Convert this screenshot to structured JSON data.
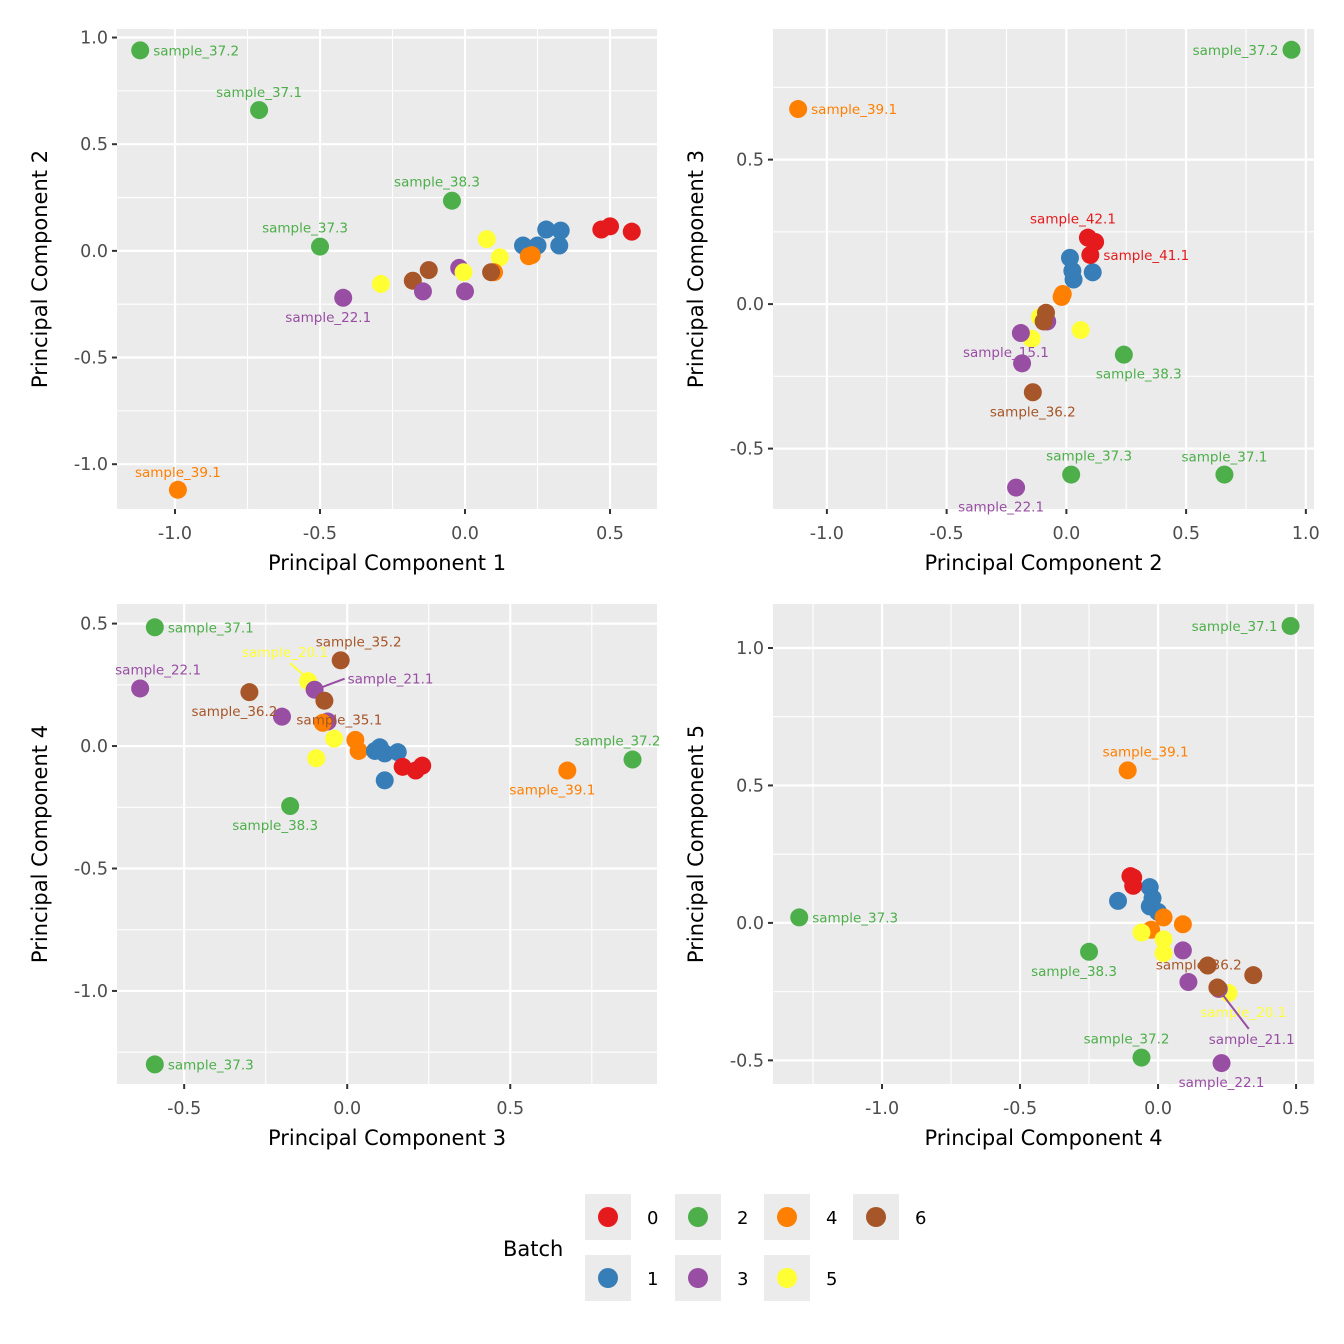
{
  "chart_data": {
    "type": "scatter",
    "palette": {
      "0": "#e41a1c",
      "1": "#377eb8",
      "2": "#4daf4a",
      "3": "#984ea3",
      "4": "#ff7f00",
      "5": "#ffff33",
      "6": "#a65628"
    },
    "legend": {
      "title": "Batch",
      "placement": "bottom",
      "entries": [
        {
          "batch": "0",
          "label": "0"
        },
        {
          "batch": "1",
          "label": "1"
        },
        {
          "batch": "2",
          "label": "2"
        },
        {
          "batch": "3",
          "label": "3"
        },
        {
          "batch": "4",
          "label": "4"
        },
        {
          "batch": "5",
          "label": "5"
        },
        {
          "batch": "6",
          "label": "6"
        }
      ]
    },
    "panels": [
      {
        "id": "pc1-pc2",
        "xlabel": "Principal Component 1",
        "ylabel": "Principal Component 2",
        "xlim": [
          -1.2,
          0.662
        ],
        "ylim": [
          -1.21,
          1.04
        ],
        "xticks": [
          -1.0,
          -0.5,
          0.0,
          0.5
        ],
        "xtick_labels": [
          "-1.0",
          "-0.5",
          "0.0",
          "0.5"
        ],
        "yticks": [
          -1.0,
          -0.5,
          0.0,
          0.5,
          1.0
        ],
        "ytick_labels": [
          "-1.0",
          "-0.5",
          "0.0",
          "0.5",
          "1.0"
        ],
        "grid": true,
        "points": [
          {
            "x": -1.12,
            "y": 0.94,
            "batch": "2",
            "label": "sample_37.2",
            "lpos": "right"
          },
          {
            "x": -0.71,
            "y": 0.66,
            "batch": "2",
            "label": "sample_37.1",
            "lpos": "above"
          },
          {
            "x": -0.045,
            "y": 0.235,
            "batch": "2",
            "label": "sample_38.3",
            "lpos": "above-left"
          },
          {
            "x": -0.5,
            "y": 0.02,
            "batch": "2",
            "label": "sample_37.3",
            "lpos": "above-left"
          },
          {
            "x": -0.99,
            "y": -1.12,
            "batch": "4",
            "label": "sample_39.1",
            "lpos": "above"
          },
          {
            "x": -0.42,
            "y": -0.22,
            "batch": "3",
            "label": "sample_22.1",
            "lpos": "below-left"
          },
          {
            "x": -0.29,
            "y": -0.155,
            "batch": "5"
          },
          {
            "x": -0.18,
            "y": -0.14,
            "batch": "6"
          },
          {
            "x": -0.125,
            "y": -0.09,
            "batch": "6"
          },
          {
            "x": -0.145,
            "y": -0.19,
            "batch": "3"
          },
          {
            "x": -0.02,
            "y": -0.08,
            "batch": "3"
          },
          {
            "x": 0.0,
            "y": -0.19,
            "batch": "3"
          },
          {
            "x": -0.005,
            "y": -0.1,
            "batch": "5"
          },
          {
            "x": 0.075,
            "y": 0.055,
            "batch": "5"
          },
          {
            "x": 0.12,
            "y": -0.03,
            "batch": "5"
          },
          {
            "x": 0.1,
            "y": -0.1,
            "batch": "4"
          },
          {
            "x": 0.09,
            "y": -0.1,
            "batch": "6"
          },
          {
            "x": 0.2,
            "y": 0.025,
            "batch": "1"
          },
          {
            "x": 0.25,
            "y": 0.025,
            "batch": "1"
          },
          {
            "x": 0.28,
            "y": 0.1,
            "batch": "1"
          },
          {
            "x": 0.33,
            "y": 0.095,
            "batch": "1"
          },
          {
            "x": 0.325,
            "y": 0.025,
            "batch": "1"
          },
          {
            "x": 0.22,
            "y": -0.025,
            "batch": "4"
          },
          {
            "x": 0.23,
            "y": -0.02,
            "batch": "4"
          },
          {
            "x": 0.47,
            "y": 0.1,
            "batch": "0"
          },
          {
            "x": 0.5,
            "y": 0.115,
            "batch": "0"
          },
          {
            "x": 0.575,
            "y": 0.09,
            "batch": "0"
          }
        ]
      },
      {
        "id": "pc2-pc3",
        "xlabel": "Principal Component 2",
        "ylabel": "Principal Component 3",
        "xlim": [
          -1.225,
          1.034
        ],
        "ylim": [
          -0.709,
          0.952
        ],
        "xticks": [
          -1.0,
          -0.5,
          0.0,
          0.5,
          1.0
        ],
        "xtick_labels": [
          "-1.0",
          "-0.5",
          "0.0",
          "0.5",
          "1.0"
        ],
        "yticks": [
          -0.5,
          0.0,
          0.5
        ],
        "ytick_labels": [
          "-0.5",
          "0.0",
          "0.5"
        ],
        "grid": true,
        "points": [
          {
            "x": 0.94,
            "y": 0.88,
            "batch": "2",
            "label": "sample_37.2",
            "lpos": "left"
          },
          {
            "x": -1.12,
            "y": 0.675,
            "batch": "4",
            "label": "sample_39.1",
            "lpos": "right"
          },
          {
            "x": -0.015,
            "y": 0.035,
            "batch": "4"
          },
          {
            "x": -0.02,
            "y": 0.025,
            "batch": "4"
          },
          {
            "x": 0.015,
            "y": 0.16,
            "batch": "1"
          },
          {
            "x": 0.025,
            "y": 0.115,
            "batch": "1"
          },
          {
            "x": 0.03,
            "y": 0.085,
            "batch": "1"
          },
          {
            "x": 0.11,
            "y": 0.11,
            "batch": "1"
          },
          {
            "x": 0.09,
            "y": 0.23,
            "batch": "0",
            "label": "sample_42.1",
            "lpos": "above-left"
          },
          {
            "x": 0.12,
            "y": 0.215,
            "batch": "0"
          },
          {
            "x": 0.1,
            "y": 0.17,
            "batch": "0",
            "label": "sample_41.1",
            "lpos": "right"
          },
          {
            "x": -0.11,
            "y": -0.045,
            "batch": "5"
          },
          {
            "x": -0.08,
            "y": -0.06,
            "batch": "3"
          },
          {
            "x": -0.085,
            "y": -0.03,
            "batch": "6"
          },
          {
            "x": -0.095,
            "y": -0.06,
            "batch": "6"
          },
          {
            "x": -0.145,
            "y": -0.12,
            "batch": "5"
          },
          {
            "x": -0.19,
            "y": -0.1,
            "batch": "3",
            "label": "sample_15.1",
            "lpos": "below-left"
          },
          {
            "x": -0.185,
            "y": -0.205,
            "batch": "3"
          },
          {
            "x": 0.06,
            "y": -0.09,
            "batch": "5"
          },
          {
            "x": 0.24,
            "y": -0.175,
            "batch": "2",
            "label": "sample_38.3",
            "lpos": "below-right"
          },
          {
            "x": -0.14,
            "y": -0.305,
            "batch": "6",
            "label": "sample_36.2",
            "lpos": "below"
          },
          {
            "x": 0.02,
            "y": -0.59,
            "batch": "2",
            "label": "sample_37.3",
            "lpos": "above-right"
          },
          {
            "x": 0.66,
            "y": -0.59,
            "batch": "2",
            "label": "sample_37.1",
            "lpos": "above"
          },
          {
            "x": -0.21,
            "y": -0.635,
            "batch": "3",
            "label": "sample_22.1",
            "lpos": "below-left"
          }
        ]
      },
      {
        "id": "pc3-pc4",
        "xlabel": "Principal Component 3",
        "ylabel": "Principal Component 4",
        "xlim": [
          -0.706,
          0.95
        ],
        "ylim": [
          -1.38,
          0.58
        ],
        "xticks": [
          -0.5,
          0.0,
          0.5
        ],
        "xtick_labels": [
          "-0.5",
          "0.0",
          "0.5"
        ],
        "yticks": [
          -1.0,
          -0.5,
          0.0,
          0.5
        ],
        "ytick_labels": [
          "-1.0",
          "-0.5",
          "0.0",
          "0.5"
        ],
        "grid": true,
        "points": [
          {
            "x": -0.59,
            "y": 0.485,
            "batch": "2",
            "label": "sample_37.1",
            "lpos": "right"
          },
          {
            "x": -0.635,
            "y": 0.235,
            "batch": "3",
            "label": "sample_22.1",
            "lpos": "above-right"
          },
          {
            "x": -0.3,
            "y": 0.22,
            "batch": "6",
            "label": "sample_36.2",
            "lpos": "below-left"
          },
          {
            "x": -0.2,
            "y": 0.12,
            "batch": "3"
          },
          {
            "x": -0.12,
            "y": 0.265,
            "batch": "5",
            "label": "sample_20.1",
            "lpos": "leader-upleft"
          },
          {
            "x": -0.1,
            "y": 0.23,
            "batch": "3",
            "label": "sample_21.1",
            "lpos": "leader-right"
          },
          {
            "x": -0.02,
            "y": 0.35,
            "batch": "6",
            "label": "sample_35.2",
            "lpos": "above-right"
          },
          {
            "x": -0.07,
            "y": 0.185,
            "batch": "6",
            "label": "sample_35.1",
            "lpos": "below-right"
          },
          {
            "x": -0.06,
            "y": 0.1,
            "batch": "3"
          },
          {
            "x": -0.075,
            "y": 0.095,
            "batch": "4"
          },
          {
            "x": -0.04,
            "y": 0.03,
            "batch": "5"
          },
          {
            "x": -0.095,
            "y": -0.05,
            "batch": "5"
          },
          {
            "x": 0.035,
            "y": -0.02,
            "batch": "4"
          },
          {
            "x": 0.025,
            "y": 0.025,
            "batch": "4"
          },
          {
            "x": 0.085,
            "y": -0.02,
            "batch": "1"
          },
          {
            "x": 0.1,
            "y": -0.005,
            "batch": "1"
          },
          {
            "x": 0.115,
            "y": -0.03,
            "batch": "1"
          },
          {
            "x": 0.155,
            "y": -0.025,
            "batch": "1"
          },
          {
            "x": 0.115,
            "y": -0.14,
            "batch": "1"
          },
          {
            "x": 0.17,
            "y": -0.085,
            "batch": "0"
          },
          {
            "x": 0.21,
            "y": -0.1,
            "batch": "0"
          },
          {
            "x": 0.23,
            "y": -0.08,
            "batch": "0"
          },
          {
            "x": -0.175,
            "y": -0.245,
            "batch": "2",
            "label": "sample_38.3",
            "lpos": "below-left"
          },
          {
            "x": 0.675,
            "y": -0.1,
            "batch": "4",
            "label": "sample_39.1",
            "lpos": "below-left"
          },
          {
            "x": 0.875,
            "y": -0.055,
            "batch": "2",
            "label": "sample_37.2",
            "lpos": "above-left"
          },
          {
            "x": -0.59,
            "y": -1.3,
            "batch": "2",
            "label": "sample_37.3",
            "lpos": "right"
          }
        ]
      },
      {
        "id": "pc4-pc5",
        "xlabel": "Principal Component 4",
        "ylabel": "Principal Component 5",
        "xlim": [
          -1.395,
          0.565
        ],
        "ylim": [
          -0.586,
          1.16
        ],
        "xticks": [
          -1.0,
          -0.5,
          0.0,
          0.5
        ],
        "xtick_labels": [
          "-1.0",
          "-0.5",
          "0.0",
          "0.5"
        ],
        "yticks": [
          -0.5,
          0.0,
          0.5,
          1.0
        ],
        "ytick_labels": [
          "-0.5",
          "0.0",
          "0.5",
          "1.0"
        ],
        "grid": true,
        "points": [
          {
            "x": 0.48,
            "y": 1.08,
            "batch": "2",
            "label": "sample_37.1",
            "lpos": "left"
          },
          {
            "x": -0.11,
            "y": 0.555,
            "batch": "4",
            "label": "sample_39.1",
            "lpos": "above-right"
          },
          {
            "x": -1.3,
            "y": 0.02,
            "batch": "2",
            "label": "sample_37.3",
            "lpos": "right"
          },
          {
            "x": -0.145,
            "y": 0.08,
            "batch": "1"
          },
          {
            "x": -0.03,
            "y": 0.13,
            "batch": "1"
          },
          {
            "x": -0.02,
            "y": 0.09,
            "batch": "1"
          },
          {
            "x": -0.03,
            "y": 0.06,
            "batch": "1"
          },
          {
            "x": 0.0,
            "y": 0.04,
            "batch": "1"
          },
          {
            "x": -0.1,
            "y": 0.17,
            "batch": "0"
          },
          {
            "x": -0.09,
            "y": 0.165,
            "batch": "0"
          },
          {
            "x": -0.09,
            "y": 0.135,
            "batch": "0"
          },
          {
            "x": -0.025,
            "y": -0.025,
            "batch": "4"
          },
          {
            "x": 0.02,
            "y": 0.02,
            "batch": "4"
          },
          {
            "x": 0.09,
            "y": -0.005,
            "batch": "4"
          },
          {
            "x": -0.06,
            "y": -0.035,
            "batch": "5"
          },
          {
            "x": 0.02,
            "y": -0.06,
            "batch": "5"
          },
          {
            "x": 0.02,
            "y": -0.11,
            "batch": "5"
          },
          {
            "x": 0.09,
            "y": -0.1,
            "batch": "3"
          },
          {
            "x": -0.25,
            "y": -0.105,
            "batch": "2",
            "label": "sample_38.3",
            "lpos": "below-left"
          },
          {
            "x": 0.18,
            "y": -0.155,
            "batch": "6",
            "label": "sample_36.2",
            "lpos": "left-center"
          },
          {
            "x": 0.345,
            "y": -0.19,
            "batch": "6"
          },
          {
            "x": 0.11,
            "y": -0.215,
            "batch": "3"
          },
          {
            "x": 0.255,
            "y": -0.255,
            "batch": "5",
            "label": "sample_20.1",
            "lpos": "below-right"
          },
          {
            "x": 0.22,
            "y": -0.24,
            "batch": "3",
            "label": "sample_21.1",
            "lpos": "leader-down"
          },
          {
            "x": 0.215,
            "y": -0.235,
            "batch": "6"
          },
          {
            "x": -0.06,
            "y": -0.49,
            "batch": "2",
            "label": "sample_37.2",
            "lpos": "above-left"
          },
          {
            "x": 0.23,
            "y": -0.51,
            "batch": "3",
            "label": "sample_22.1",
            "lpos": "below"
          }
        ]
      }
    ]
  }
}
